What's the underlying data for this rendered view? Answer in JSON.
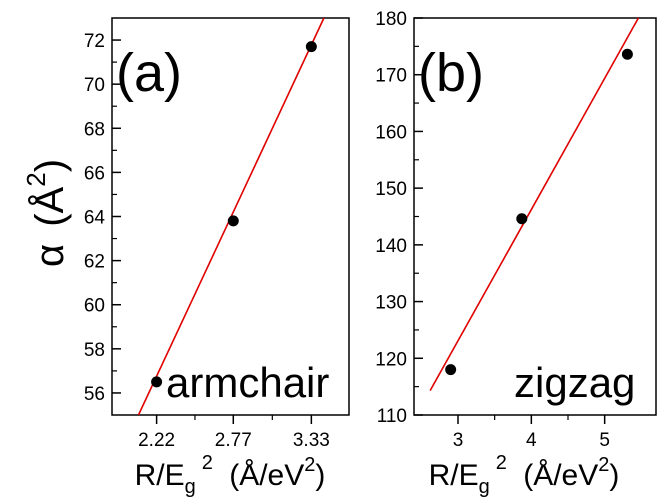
{
  "y_axis_label": {
    "symbol": "α",
    "unit": "Å",
    "exponent": "2"
  },
  "chart_data": [
    {
      "type": "scatter",
      "panel_label": "(a)",
      "annotation": "armchair",
      "xlabel": {
        "main": "R/E",
        "sub": "g",
        "sup": "2",
        "unit": "(Å/eV",
        "unit_sup": "2",
        "close": ")"
      },
      "xlim": [
        1.9,
        3.6
      ],
      "ylim": [
        55,
        73
      ],
      "x_ticks": [
        2.22,
        2.77,
        3.33
      ],
      "x_tick_labels": [
        "2.22",
        "2.77",
        "3.33"
      ],
      "y_ticks": [
        56,
        58,
        60,
        62,
        64,
        66,
        68,
        70,
        72
      ],
      "y_tick_labels": [
        "56",
        "58",
        "60",
        "62",
        "64",
        "66",
        "68",
        "70",
        "72"
      ],
      "points": [
        {
          "x": 2.22,
          "y": 56.5
        },
        {
          "x": 2.77,
          "y": 63.8
        },
        {
          "x": 3.33,
          "y": 71.7
        }
      ],
      "fit_line": {
        "x": [
          2.09,
          3.42
        ],
        "y": [
          55.0,
          73.0
        ],
        "color": "#e00000"
      },
      "marker_color": "#000000",
      "grid": false
    },
    {
      "type": "scatter",
      "panel_label": "(b)",
      "annotation": "zigzag",
      "xlabel": {
        "main": "R/E",
        "sub": "g",
        "sup": "2",
        "unit": "(Å/eV",
        "unit_sup": "2",
        "close": ")"
      },
      "xlim": [
        2.4,
        5.7
      ],
      "ylim": [
        110,
        180
      ],
      "x_ticks": [
        3,
        4,
        5
      ],
      "x_tick_labels": [
        "3",
        "4",
        "5"
      ],
      "y_ticks": [
        110,
        120,
        130,
        140,
        150,
        160,
        170,
        180
      ],
      "y_tick_labels": [
        "110",
        "120",
        "130",
        "140",
        "150",
        "160",
        "170",
        "180"
      ],
      "points": [
        {
          "x": 2.9,
          "y": 118.0
        },
        {
          "x": 3.87,
          "y": 144.6
        },
        {
          "x": 5.31,
          "y": 173.6
        }
      ],
      "fit_line": {
        "x": [
          2.62,
          5.46
        ],
        "y": [
          114.3,
          180.0
        ],
        "color": "#e00000"
      },
      "marker_color": "#000000",
      "grid": false
    }
  ]
}
